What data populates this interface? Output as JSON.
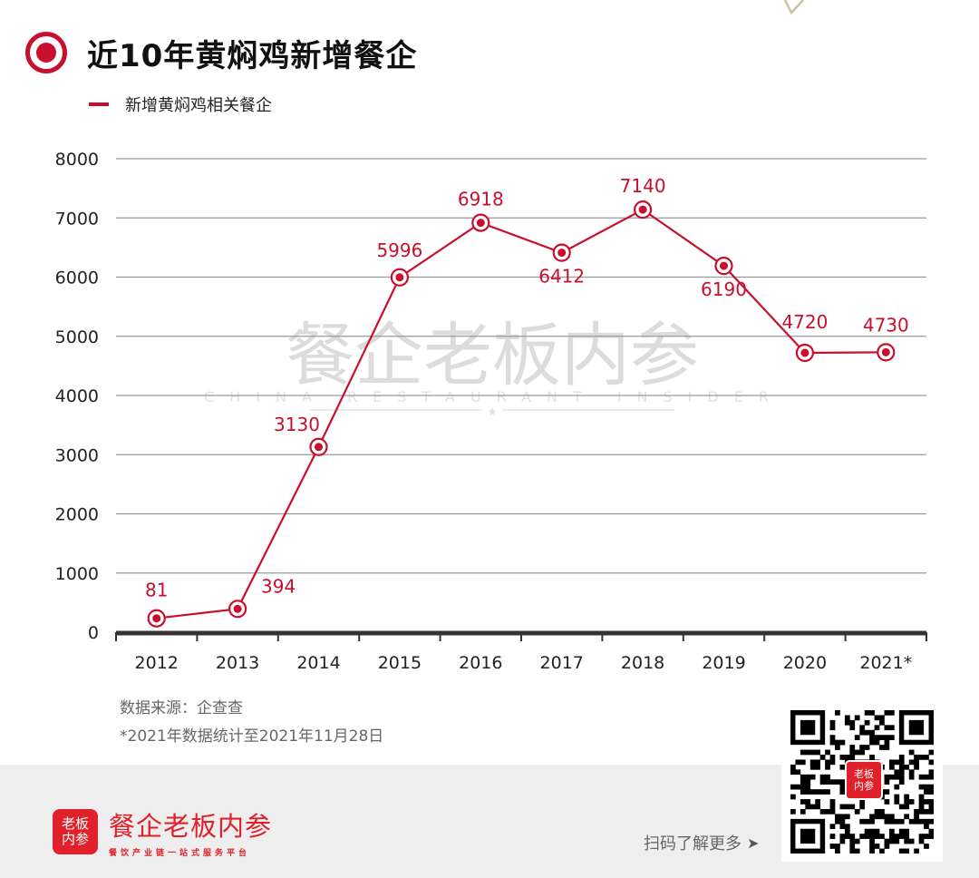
{
  "header": {
    "title": "近10年黄焖鸡新增餐企",
    "title_icon": "target-circle-icon",
    "legend_label": "新增黄焖鸡相关餐企"
  },
  "colors": {
    "accent": "#c8102e",
    "brand_red": "#e0212b",
    "grid": "#9a9a9a",
    "axis": "#333333",
    "footer_bg": "#eeeeee"
  },
  "watermark": {
    "cn": "餐企老板内参",
    "en": "CHINA RESTAURANT INSIDER",
    "star": "★"
  },
  "chart_data": {
    "type": "line",
    "title": "近10年黄焖鸡新增餐企",
    "xlabel": "",
    "ylabel": "",
    "categories": [
      "2012",
      "2013",
      "2014",
      "2015",
      "2016",
      "2017",
      "2018",
      "2019",
      "2020",
      "2021*"
    ],
    "series": [
      {
        "name": "新增黄焖鸡相关餐企",
        "values": [
          81,
          394,
          3130,
          5996,
          6918,
          6412,
          7140,
          6190,
          4720,
          4730
        ],
        "color": "#c8102e"
      }
    ],
    "data_labels": [
      "81",
      "394",
      "3130",
      "5996",
      "6918",
      "6412",
      "7140",
      "6190",
      "4720",
      "4730"
    ],
    "yticks": [
      "0",
      "1000",
      "2000",
      "3000",
      "4000",
      "5000",
      "6000",
      "7000",
      "8000"
    ],
    "ylim": [
      0,
      8000
    ],
    "grid": true,
    "legend_position": "top-left"
  },
  "notes": {
    "source": "数据来源：企查查",
    "footnote": "*2021年数据统计至2021年11月28日"
  },
  "footer": {
    "logo_text_1": "老板",
    "logo_text_2": "内参",
    "brand_name": "餐企老板内参",
    "brand_slogan": "餐饮产业链一站式服务平台",
    "cta_label": "扫码了解更多",
    "cta_arrow": "➤",
    "qr_center_1": "老板",
    "qr_center_2": "内参"
  }
}
